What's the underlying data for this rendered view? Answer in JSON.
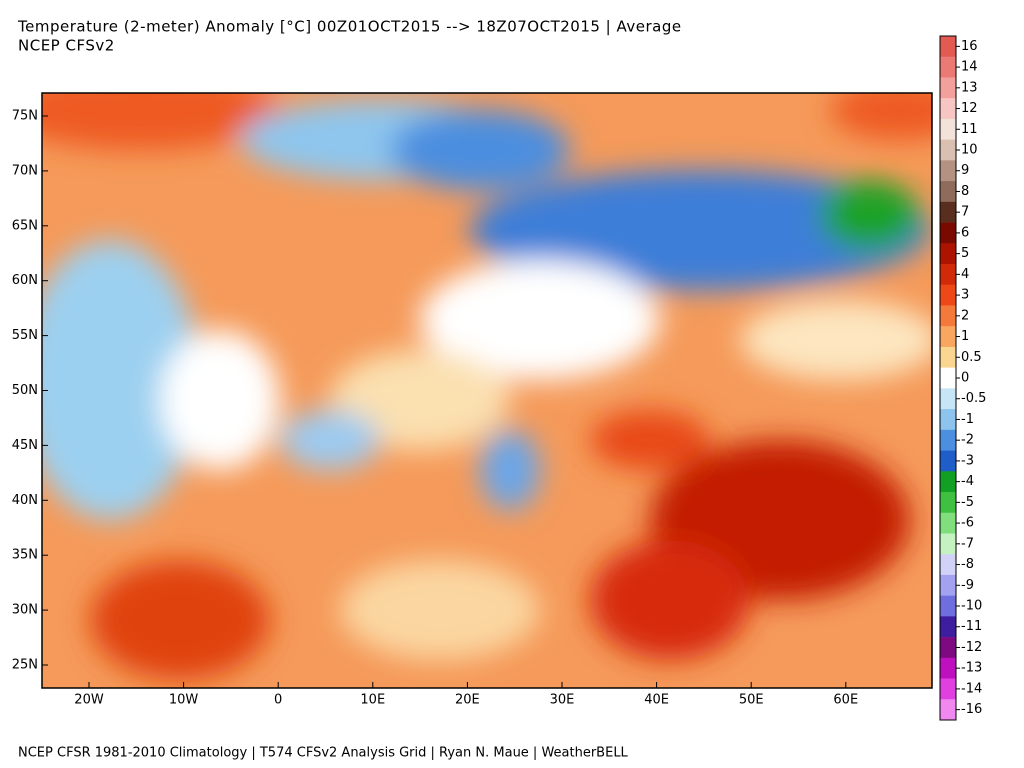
{
  "title": "Temperature (2-meter) Anomaly  [°C] 00Z01OCT2015 --> 18Z07OCT2015 | Average",
  "subtitle": "NCEP CFSv2",
  "footer": "NCEP CFSR 1981-2010 Climatology | T574 CFSv2 Analysis Grid | Ryan N. Maue | WeatherBELL",
  "lat_labels": [
    "75N",
    "70N",
    "65N",
    "60N",
    "55N",
    "50N",
    "45N",
    "40N",
    "35N",
    "30N",
    "25N"
  ],
  "lon_labels": [
    "20W",
    "10W",
    "0",
    "10E",
    "20E",
    "30E",
    "40E",
    "50E",
    "60E"
  ],
  "colorbar": [
    {
      "label": "16",
      "color": "#e25a52"
    },
    {
      "label": "14",
      "color": "#ec7a74"
    },
    {
      "label": "13",
      "color": "#f3a09c"
    },
    {
      "label": "12",
      "color": "#f8c6c2"
    },
    {
      "label": "11",
      "color": "#f2e2da"
    },
    {
      "label": "10",
      "color": "#d9c0b0"
    },
    {
      "label": "9",
      "color": "#b39282"
    },
    {
      "label": "8",
      "color": "#8e6b5a"
    },
    {
      "label": "7",
      "color": "#5a2e1e"
    },
    {
      "label": "6",
      "color": "#7a0a00"
    },
    {
      "label": "5",
      "color": "#ad1400"
    },
    {
      "label": "4",
      "color": "#d12a08"
    },
    {
      "label": "3",
      "color": "#ee4818"
    },
    {
      "label": "2",
      "color": "#f47a3c"
    },
    {
      "label": "1",
      "color": "#f8a660"
    },
    {
      "label": "0.5",
      "color": "#fad690"
    },
    {
      "label": "0",
      "color": "#ffffff"
    },
    {
      "label": "-0.5",
      "color": "#c6e6f8"
    },
    {
      "label": "-1",
      "color": "#8cc4ee"
    },
    {
      "label": "-2",
      "color": "#4c8edf"
    },
    {
      "label": "-3",
      "color": "#1f5ec8"
    },
    {
      "label": "-4",
      "color": "#12a024"
    },
    {
      "label": "-5",
      "color": "#3fc040"
    },
    {
      "label": "-6",
      "color": "#80de7c"
    },
    {
      "label": "-7",
      "color": "#c4f2c0"
    },
    {
      "label": "-8",
      "color": "#d2d2f8"
    },
    {
      "label": "-9",
      "color": "#a2a2f0"
    },
    {
      "label": "-10",
      "color": "#6e6edf"
    },
    {
      "label": "-11",
      "color": "#3e1e9e"
    },
    {
      "label": "-12",
      "color": "#7e0a82"
    },
    {
      "label": "-13",
      "color": "#be10be"
    },
    {
      "label": "-14",
      "color": "#e040e0"
    },
    {
      "label": "-16",
      "color": "#f088f0"
    }
  ]
}
